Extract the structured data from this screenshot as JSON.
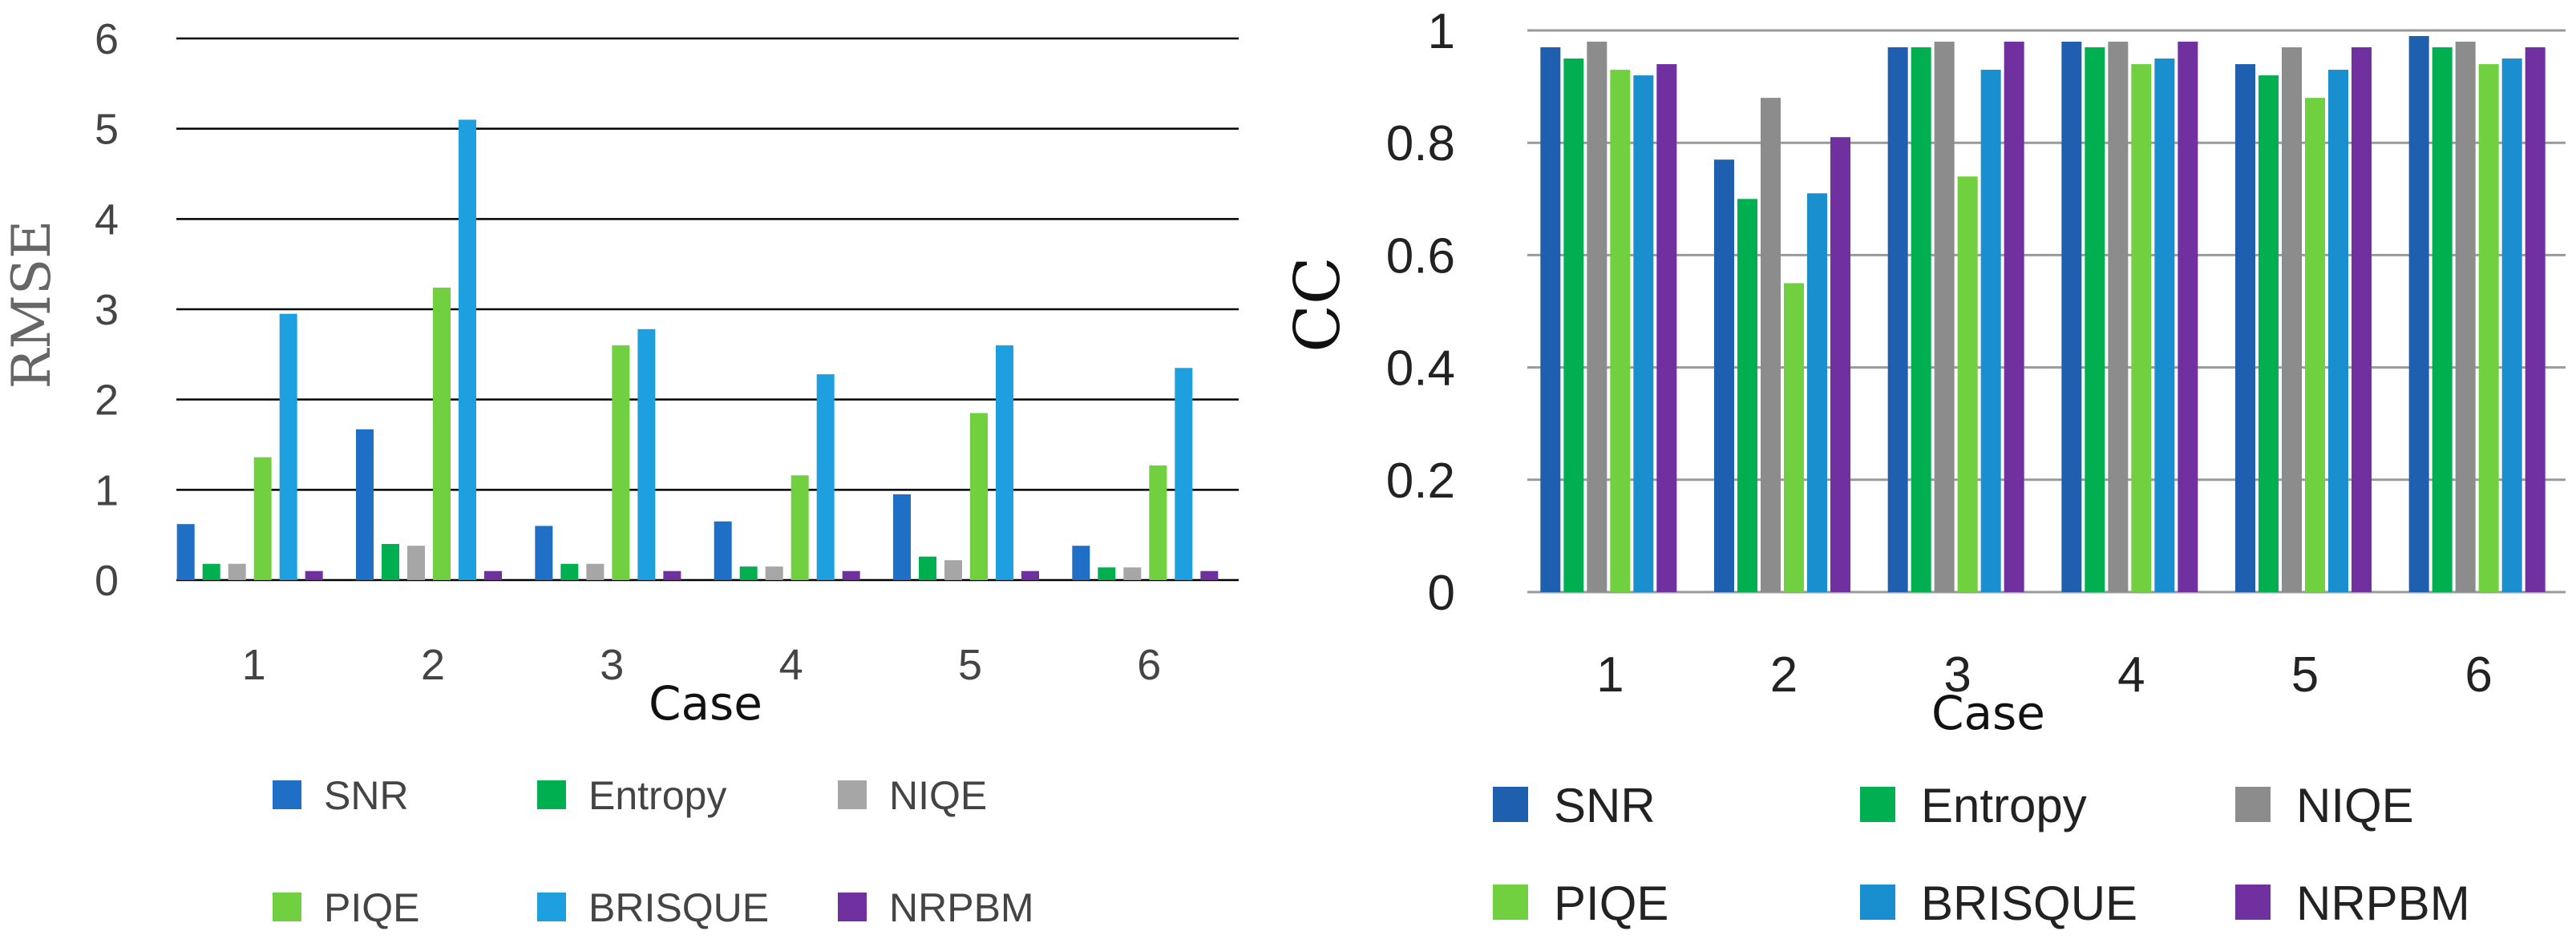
{
  "chart_data": [
    {
      "type": "bar",
      "title": "",
      "xlabel": "Case",
      "ylabel": "RMSE",
      "ylim": [
        0,
        6
      ],
      "yticks": [
        "0",
        "1",
        "2",
        "3",
        "4",
        "5",
        "6"
      ],
      "categories": [
        "1",
        "2",
        "3",
        "4",
        "5",
        "6"
      ],
      "grid": true,
      "legend_position": "bottom",
      "series": [
        {
          "name": "SNR",
          "color": "#1f6fc7",
          "values": [
            0.62,
            1.67,
            0.6,
            0.65,
            0.95,
            0.38
          ]
        },
        {
          "name": "Entropy",
          "color": "#00b050",
          "values": [
            0.18,
            0.4,
            0.18,
            0.15,
            0.26,
            0.14
          ]
        },
        {
          "name": "NIQE",
          "color": "#a6a6a6",
          "values": [
            0.18,
            0.38,
            0.18,
            0.15,
            0.22,
            0.14
          ]
        },
        {
          "name": "PIQE",
          "color": "#70d040",
          "values": [
            1.36,
            3.24,
            2.6,
            1.16,
            1.85,
            1.27
          ]
        },
        {
          "name": "BRISQUE",
          "color": "#1ea0e0",
          "values": [
            2.95,
            5.1,
            2.78,
            2.28,
            2.6,
            2.35
          ]
        },
        {
          "name": "NRPBM",
          "color": "#7030a0",
          "values": [
            0.1,
            0.1,
            0.1,
            0.1,
            0.1,
            0.1
          ]
        }
      ]
    },
    {
      "type": "bar",
      "title": "",
      "xlabel": "Case",
      "ylabel": "CC",
      "ylim": [
        0,
        1
      ],
      "yticks": [
        "0",
        "0.2",
        "0.4",
        "0.6",
        "0.8",
        "1"
      ],
      "categories": [
        "1",
        "2",
        "3",
        "4",
        "5",
        "6"
      ],
      "grid": true,
      "legend_position": "bottom",
      "series": [
        {
          "name": "SNR",
          "color": "#1f5fb0",
          "values": [
            0.97,
            0.77,
            0.97,
            0.98,
            0.94,
            0.99
          ]
        },
        {
          "name": "Entropy",
          "color": "#00b050",
          "values": [
            0.95,
            0.7,
            0.97,
            0.97,
            0.92,
            0.97
          ]
        },
        {
          "name": "NIQE",
          "color": "#8c8c8c",
          "values": [
            0.98,
            0.88,
            0.98,
            0.98,
            0.97,
            0.98
          ]
        },
        {
          "name": "PIQE",
          "color": "#70d040",
          "values": [
            0.93,
            0.55,
            0.74,
            0.94,
            0.88,
            0.94
          ]
        },
        {
          "name": "BRISQUE",
          "color": "#1a8fcf",
          "values": [
            0.92,
            0.71,
            0.93,
            0.95,
            0.93,
            0.95
          ]
        },
        {
          "name": "NRPBM",
          "color": "#7030a0",
          "values": [
            0.94,
            0.81,
            0.98,
            0.98,
            0.97,
            0.97
          ]
        }
      ]
    }
  ]
}
